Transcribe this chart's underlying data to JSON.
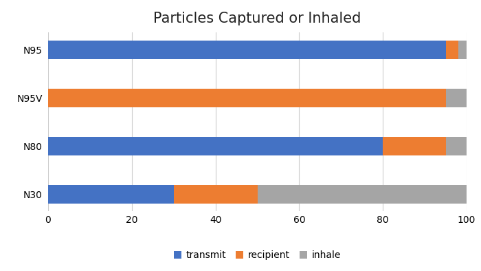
{
  "title": "Particles Captured or Inhaled",
  "categories": [
    "N95",
    "N95V",
    "N80",
    "N30"
  ],
  "series": [
    {
      "label": "transmit",
      "color": "#4472C4",
      "values": [
        95,
        0,
        80,
        30
      ]
    },
    {
      "label": "recipient",
      "color": "#ED7D31",
      "values": [
        3,
        95,
        15,
        20
      ]
    },
    {
      "label": "inhale",
      "color": "#A5A5A5",
      "values": [
        2,
        5,
        5,
        50
      ]
    }
  ],
  "xlim": [
    0,
    100
  ],
  "xticks": [
    0,
    20,
    40,
    60,
    80,
    100
  ],
  "title_fontsize": 15,
  "tick_fontsize": 10,
  "legend_fontsize": 10,
  "bar_height": 0.38,
  "background_color": "#FFFFFF",
  "grid_color": "#CCCCCC"
}
